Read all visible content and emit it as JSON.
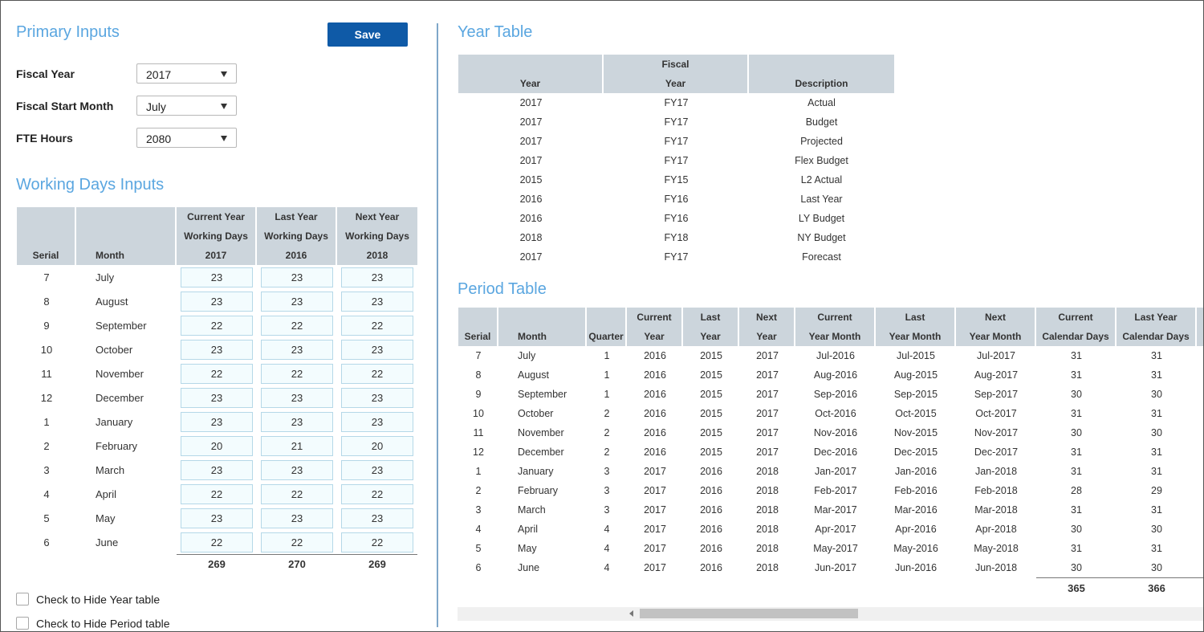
{
  "primary": {
    "title": "Primary Inputs",
    "save_label": "Save",
    "fiscal_year_label": "Fiscal Year",
    "fiscal_year_value": "2017",
    "fiscal_start_label": "Fiscal Start Month",
    "fiscal_start_value": "July",
    "fte_label": "FTE Hours",
    "fte_value": "2080"
  },
  "working_days": {
    "title": "Working Days Inputs",
    "headers": {
      "serial": "Serial",
      "month": "Month",
      "cy": [
        "Current Year",
        "Working Days",
        "2017"
      ],
      "ly": [
        "Last Year",
        "Working Days",
        "2016"
      ],
      "ny": [
        "Next Year",
        "Working Days",
        "2018"
      ]
    },
    "rows": [
      {
        "serial": "7",
        "month": "July",
        "cy": "23",
        "ly": "23",
        "ny": "23"
      },
      {
        "serial": "8",
        "month": "August",
        "cy": "23",
        "ly": "23",
        "ny": "23"
      },
      {
        "serial": "9",
        "month": "September",
        "cy": "22",
        "ly": "22",
        "ny": "22"
      },
      {
        "serial": "10",
        "month": "October",
        "cy": "23",
        "ly": "23",
        "ny": "23"
      },
      {
        "serial": "11",
        "month": "November",
        "cy": "22",
        "ly": "22",
        "ny": "22"
      },
      {
        "serial": "12",
        "month": "December",
        "cy": "23",
        "ly": "23",
        "ny": "23"
      },
      {
        "serial": "1",
        "month": "January",
        "cy": "23",
        "ly": "23",
        "ny": "23"
      },
      {
        "serial": "2",
        "month": "February",
        "cy": "20",
        "ly": "21",
        "ny": "20"
      },
      {
        "serial": "3",
        "month": "March",
        "cy": "23",
        "ly": "23",
        "ny": "23"
      },
      {
        "serial": "4",
        "month": "April",
        "cy": "22",
        "ly": "22",
        "ny": "22"
      },
      {
        "serial": "5",
        "month": "May",
        "cy": "23",
        "ly": "23",
        "ny": "23"
      },
      {
        "serial": "6",
        "month": "June",
        "cy": "22",
        "ly": "22",
        "ny": "22"
      }
    ],
    "totals": {
      "cy": "269",
      "ly": "270",
      "ny": "269"
    }
  },
  "checkboxes": {
    "hide_year": "Check to Hide Year table",
    "hide_period": "Check to Hide Period table"
  },
  "year_table": {
    "title": "Year Table",
    "headers": {
      "year": "Year",
      "fiscal": [
        "Fiscal",
        "Year"
      ],
      "desc": "Description"
    },
    "rows": [
      {
        "year": "2017",
        "fy": "FY17",
        "desc": "Actual"
      },
      {
        "year": "2017",
        "fy": "FY17",
        "desc": "Budget"
      },
      {
        "year": "2017",
        "fy": "FY17",
        "desc": "Projected"
      },
      {
        "year": "2017",
        "fy": "FY17",
        "desc": "Flex Budget"
      },
      {
        "year": "2015",
        "fy": "FY15",
        "desc": "L2 Actual"
      },
      {
        "year": "2016",
        "fy": "FY16",
        "desc": "Last Year"
      },
      {
        "year": "2016",
        "fy": "FY16",
        "desc": "LY Budget"
      },
      {
        "year": "2018",
        "fy": "FY18",
        "desc": "NY Budget"
      },
      {
        "year": "2017",
        "fy": "FY17",
        "desc": "Forecast"
      }
    ]
  },
  "period_table": {
    "title": "Period Table",
    "headers": {
      "serial": "Serial",
      "month": "Month",
      "quarter": "Quarter",
      "cur_year": [
        "Current",
        "Year"
      ],
      "last_year": [
        "Last",
        "Year"
      ],
      "next_year": [
        "Next",
        "Year"
      ],
      "cur_ym": [
        "Current",
        "Year Month"
      ],
      "last_ym": [
        "Last",
        "Year Month"
      ],
      "next_ym": [
        "Next",
        "Year Month"
      ],
      "cur_cd": [
        "Current",
        "Calendar Days"
      ],
      "ly_cd": [
        "Last Year",
        "Calendar Days"
      ]
    },
    "rows": [
      {
        "serial": "7",
        "month": "July",
        "q": "1",
        "cy": "2016",
        "ly": "2015",
        "ny": "2017",
        "cym": "Jul-2016",
        "lym": "Jul-2015",
        "nym": "Jul-2017",
        "ccd": "31",
        "lcd": "31"
      },
      {
        "serial": "8",
        "month": "August",
        "q": "1",
        "cy": "2016",
        "ly": "2015",
        "ny": "2017",
        "cym": "Aug-2016",
        "lym": "Aug-2015",
        "nym": "Aug-2017",
        "ccd": "31",
        "lcd": "31"
      },
      {
        "serial": "9",
        "month": "September",
        "q": "1",
        "cy": "2016",
        "ly": "2015",
        "ny": "2017",
        "cym": "Sep-2016",
        "lym": "Sep-2015",
        "nym": "Sep-2017",
        "ccd": "30",
        "lcd": "30"
      },
      {
        "serial": "10",
        "month": "October",
        "q": "2",
        "cy": "2016",
        "ly": "2015",
        "ny": "2017",
        "cym": "Oct-2016",
        "lym": "Oct-2015",
        "nym": "Oct-2017",
        "ccd": "31",
        "lcd": "31"
      },
      {
        "serial": "11",
        "month": "November",
        "q": "2",
        "cy": "2016",
        "ly": "2015",
        "ny": "2017",
        "cym": "Nov-2016",
        "lym": "Nov-2015",
        "nym": "Nov-2017",
        "ccd": "30",
        "lcd": "30"
      },
      {
        "serial": "12",
        "month": "December",
        "q": "2",
        "cy": "2016",
        "ly": "2015",
        "ny": "2017",
        "cym": "Dec-2016",
        "lym": "Dec-2015",
        "nym": "Dec-2017",
        "ccd": "31",
        "lcd": "31"
      },
      {
        "serial": "1",
        "month": "January",
        "q": "3",
        "cy": "2017",
        "ly": "2016",
        "ny": "2018",
        "cym": "Jan-2017",
        "lym": "Jan-2016",
        "nym": "Jan-2018",
        "ccd": "31",
        "lcd": "31"
      },
      {
        "serial": "2",
        "month": "February",
        "q": "3",
        "cy": "2017",
        "ly": "2016",
        "ny": "2018",
        "cym": "Feb-2017",
        "lym": "Feb-2016",
        "nym": "Feb-2018",
        "ccd": "28",
        "lcd": "29"
      },
      {
        "serial": "3",
        "month": "March",
        "q": "3",
        "cy": "2017",
        "ly": "2016",
        "ny": "2018",
        "cym": "Mar-2017",
        "lym": "Mar-2016",
        "nym": "Mar-2018",
        "ccd": "31",
        "lcd": "31"
      },
      {
        "serial": "4",
        "month": "April",
        "q": "4",
        "cy": "2017",
        "ly": "2016",
        "ny": "2018",
        "cym": "Apr-2017",
        "lym": "Apr-2016",
        "nym": "Apr-2018",
        "ccd": "30",
        "lcd": "30"
      },
      {
        "serial": "5",
        "month": "May",
        "q": "4",
        "cy": "2017",
        "ly": "2016",
        "ny": "2018",
        "cym": "May-2017",
        "lym": "May-2016",
        "nym": "May-2018",
        "ccd": "31",
        "lcd": "31"
      },
      {
        "serial": "6",
        "month": "June",
        "q": "4",
        "cy": "2017",
        "ly": "2016",
        "ny": "2018",
        "cym": "Jun-2017",
        "lym": "Jun-2016",
        "nym": "Jun-2018",
        "ccd": "30",
        "lcd": "30"
      }
    ],
    "totals": {
      "ccd": "365",
      "lcd": "366"
    }
  }
}
